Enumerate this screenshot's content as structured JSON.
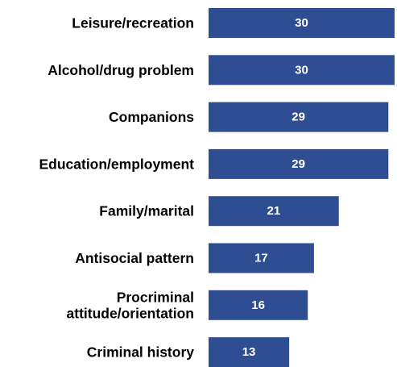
{
  "chart_data": {
    "type": "bar",
    "orientation": "horizontal",
    "categories": [
      [
        "Leisure/recreation"
      ],
      [
        "Alcohol/drug problem"
      ],
      [
        "Companions"
      ],
      [
        "Education/employment"
      ],
      [
        "Family/marital"
      ],
      [
        "Antisocial pattern"
      ],
      [
        "Procriminal",
        "attitude/orientation"
      ],
      [
        "Criminal history"
      ]
    ],
    "values": [
      30,
      30,
      29,
      29,
      21,
      17,
      16,
      13
    ],
    "data_labels": [
      "30",
      "30",
      "29",
      "29",
      "21",
      "17",
      "16",
      "13"
    ],
    "xlim": [
      0,
      30
    ],
    "title": "",
    "xlabel": "",
    "ylabel": "",
    "grid": false,
    "legend": "none",
    "bar_color": "#2f4d93",
    "value_label_color": "#ffffff",
    "category_label_color": "#000000"
  }
}
